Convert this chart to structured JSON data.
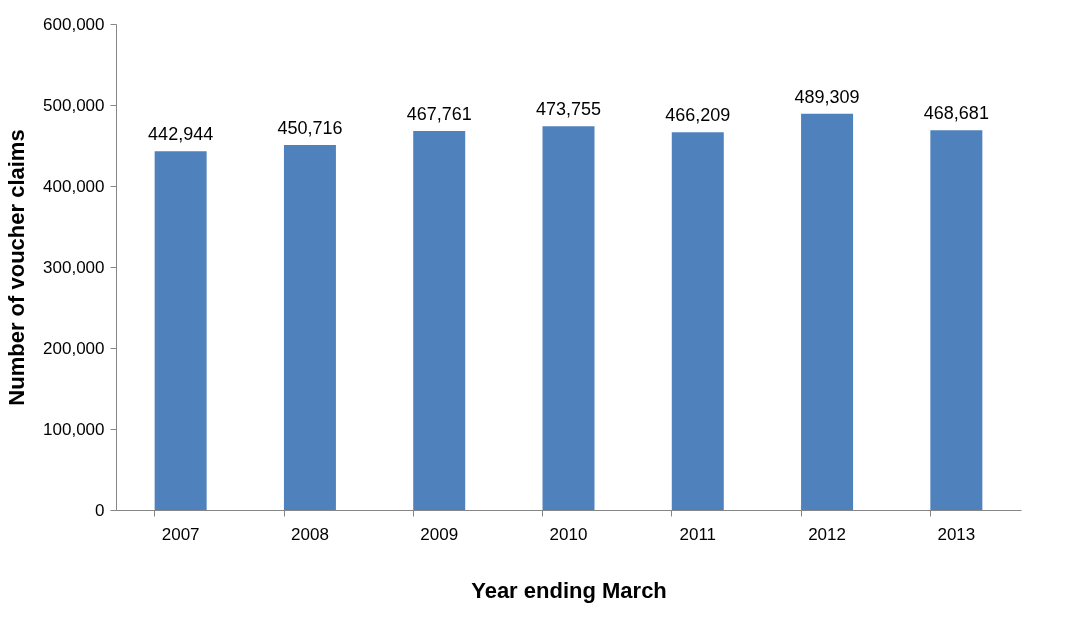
{
  "chart_data": {
    "type": "bar",
    "xlabel": "Year ending March",
    "ylabel": "Number of  voucher claims",
    "categories": [
      "2007",
      "2008",
      "2009",
      "2010",
      "2011",
      "2012",
      "2013"
    ],
    "values": [
      442944,
      450716,
      467761,
      473755,
      466209,
      489309,
      468681
    ],
    "value_labels": [
      "442,944",
      "450,716",
      "467,761",
      "473,755",
      "466,209",
      "489,309",
      "468,681"
    ],
    "color": "#4f81bd",
    "ylim": [
      0,
      600000
    ],
    "yticks": [
      {
        "value": 0,
        "label": "0"
      },
      {
        "value": 100000,
        "label": "100,000"
      },
      {
        "value": 200000,
        "label": "200,000"
      },
      {
        "value": 300000,
        "label": "300,000"
      },
      {
        "value": 400000,
        "label": "400,000"
      },
      {
        "value": 500000,
        "label": "500,000"
      },
      {
        "value": 600000,
        "label": "600,000"
      }
    ],
    "grid": false
  }
}
